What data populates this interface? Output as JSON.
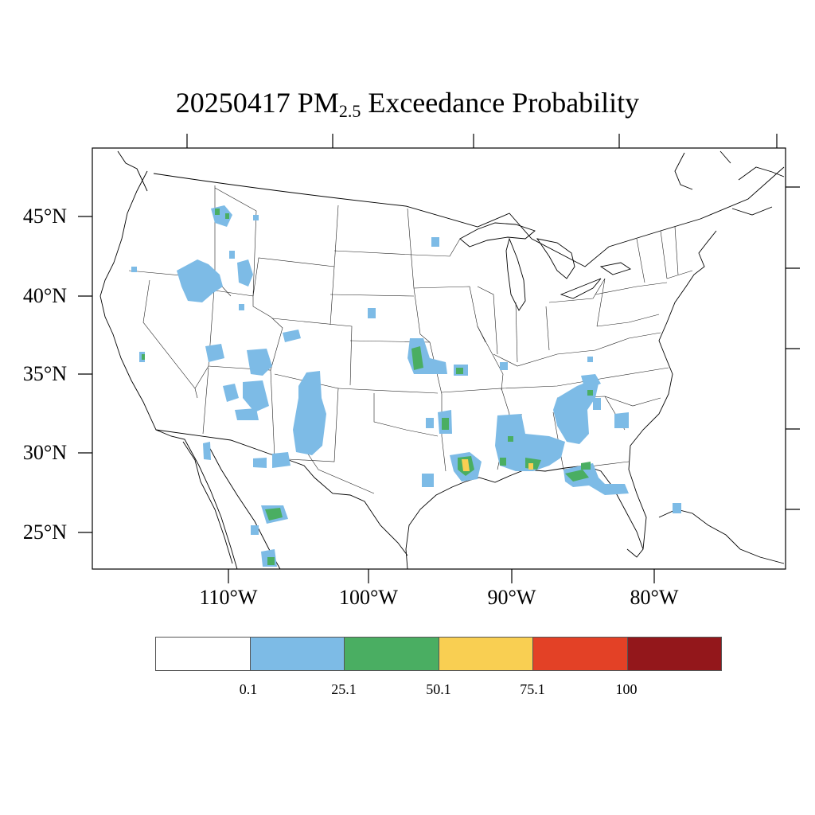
{
  "title": {
    "date": "20250417",
    "pm": "PM",
    "sub": "2.5",
    "rest": "Exceedance Probability"
  },
  "axes": {
    "lat_labels": [
      "45°N",
      "40°N",
      "35°N",
      "30°N",
      "25°N"
    ],
    "lon_labels": [
      "110°W",
      "100°W",
      "90°W",
      "80°W"
    ]
  },
  "legend": {
    "colors": [
      "#ffffff",
      "#7dbbe6",
      "#4aae62",
      "#f9cf52",
      "#e34126",
      "#93171b"
    ],
    "labels": [
      "0.1",
      "25.1",
      "50.1",
      "75.1",
      "100"
    ]
  }
}
